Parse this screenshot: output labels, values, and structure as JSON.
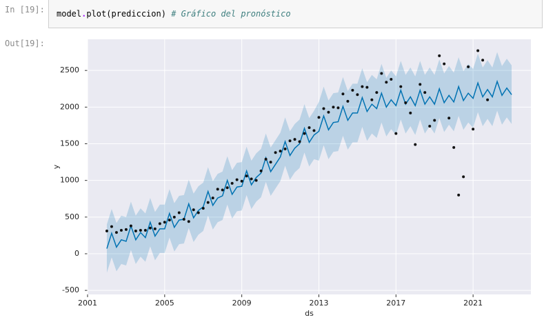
{
  "notebook": {
    "in_prompt": "In [19]:",
    "out_prompt": "Out[19]:",
    "code": {
      "object": "model",
      "dot": ".",
      "call": "plot(prediccion)",
      "comment": "# Gráfico del pronóstico"
    }
  },
  "chart_data": {
    "type": "line",
    "xlabel": "ds",
    "ylabel": "y",
    "xlim": [
      2001,
      2024
    ],
    "ylim": [
      -555,
      2925
    ],
    "xticks": [
      2001,
      2005,
      2009,
      2013,
      2017,
      2021
    ],
    "yticks": [
      -500,
      0,
      500,
      1000,
      1500,
      2000,
      2500
    ],
    "grid": true,
    "color": "#0072b2",
    "band_color": "#0072b2",
    "point_color": "#111111",
    "x": [
      2002,
      2002.25,
      2002.5,
      2002.75,
      2003,
      2003.25,
      2003.5,
      2003.75,
      2004,
      2004.25,
      2004.5,
      2004.75,
      2005,
      2005.25,
      2005.5,
      2005.75,
      2006,
      2006.25,
      2006.5,
      2006.75,
      2007,
      2007.25,
      2007.5,
      2007.75,
      2008,
      2008.25,
      2008.5,
      2008.75,
      2009,
      2009.25,
      2009.5,
      2009.75,
      2010,
      2010.25,
      2010.5,
      2010.75,
      2011,
      2011.25,
      2011.5,
      2011.75,
      2012,
      2012.25,
      2012.5,
      2012.75,
      2013,
      2013.25,
      2013.5,
      2013.75,
      2014,
      2014.25,
      2014.5,
      2014.75,
      2015,
      2015.25,
      2015.5,
      2015.75,
      2016,
      2016.25,
      2016.5,
      2016.75,
      2017,
      2017.25,
      2017.5,
      2017.75,
      2018,
      2018.25,
      2018.5,
      2018.75,
      2019,
      2019.25,
      2019.5,
      2019.75,
      2020,
      2020.25,
      2020.5,
      2020.75,
      2021,
      2021.25,
      2021.5,
      2021.75,
      2022,
      2022.25,
      2022.5,
      2022.75,
      2023
    ],
    "values": [
      70,
      280,
      90,
      190,
      170,
      380,
      190,
      290,
      220,
      430,
      240,
      340,
      340,
      550,
      360,
      460,
      470,
      680,
      490,
      590,
      640,
      850,
      660,
      760,
      790,
      1000,
      810,
      910,
      920,
      1130,
      940,
      1040,
      1100,
      1310,
      1120,
      1220,
      1320,
      1530,
      1340,
      1440,
      1500,
      1710,
      1520,
      1620,
      1670,
      1880,
      1690,
      1790,
      1800,
      2010,
      1820,
      1920,
      1920,
      2130,
      1940,
      2040,
      1980,
      2190,
      2000,
      2100,
      2020,
      2230,
      2040,
      2140,
      2020,
      2230,
      2040,
      2140,
      2040,
      2250,
      2060,
      2160,
      2070,
      2280,
      2090,
      2190,
      2120,
      2330,
      2140,
      2240,
      2140,
      2350,
      2160,
      2260,
      2170
    ],
    "lower": [
      -260,
      -50,
      -240,
      -140,
      -160,
      50,
      -140,
      -40,
      -110,
      100,
      -90,
      10,
      10,
      220,
      30,
      130,
      140,
      350,
      160,
      260,
      310,
      520,
      330,
      430,
      460,
      670,
      480,
      580,
      590,
      800,
      610,
      710,
      770,
      980,
      790,
      890,
      990,
      1200,
      1010,
      1110,
      1170,
      1380,
      1190,
      1290,
      1270,
      1480,
      1290,
      1390,
      1400,
      1610,
      1420,
      1520,
      1520,
      1730,
      1540,
      1640,
      1580,
      1790,
      1600,
      1700,
      1620,
      1830,
      1640,
      1740,
      1620,
      1830,
      1640,
      1740,
      1640,
      1850,
      1660,
      1760,
      1670,
      1880,
      1690,
      1790,
      1720,
      1930,
      1740,
      1840,
      1740,
      1950,
      1760,
      1860,
      1770
    ],
    "upper": [
      400,
      610,
      420,
      520,
      500,
      710,
      520,
      620,
      550,
      760,
      570,
      670,
      670,
      880,
      690,
      790,
      800,
      1010,
      820,
      920,
      970,
      1180,
      990,
      1090,
      1120,
      1330,
      1140,
      1240,
      1250,
      1460,
      1270,
      1370,
      1430,
      1640,
      1450,
      1550,
      1650,
      1860,
      1670,
      1770,
      1830,
      2040,
      1850,
      1950,
      2070,
      2280,
      2090,
      2190,
      2200,
      2410,
      2220,
      2320,
      2320,
      2530,
      2340,
      2440,
      2380,
      2590,
      2400,
      2500,
      2420,
      2630,
      2440,
      2540,
      2420,
      2630,
      2440,
      2540,
      2440,
      2650,
      2460,
      2560,
      2470,
      2680,
      2490,
      2590,
      2520,
      2730,
      2540,
      2640,
      2540,
      2750,
      2560,
      2660,
      2570
    ],
    "points": {
      "x": [
        2002,
        2002.25,
        2002.5,
        2002.75,
        2003,
        2003.25,
        2003.5,
        2003.75,
        2004,
        2004.25,
        2004.5,
        2004.75,
        2005,
        2005.25,
        2005.5,
        2005.75,
        2006,
        2006.25,
        2006.5,
        2006.75,
        2007,
        2007.25,
        2007.5,
        2007.75,
        2008,
        2008.25,
        2008.5,
        2008.75,
        2009,
        2009.25,
        2009.5,
        2009.75,
        2010,
        2010.25,
        2010.5,
        2010.75,
        2011,
        2011.25,
        2011.5,
        2011.75,
        2012,
        2012.25,
        2012.5,
        2012.75,
        2013,
        2013.25,
        2013.5,
        2013.75,
        2014,
        2014.25,
        2014.5,
        2014.75,
        2015,
        2015.25,
        2015.5,
        2015.75,
        2016,
        2016.25,
        2016.5,
        2016.75,
        2017,
        2017.25,
        2017.5,
        2017.75,
        2018,
        2018.25,
        2018.5,
        2018.75,
        2019,
        2019.25,
        2019.5,
        2019.75,
        2020,
        2020.25,
        2020.5,
        2020.75,
        2021,
        2021.25,
        2021.5,
        2021.75
      ],
      "values": [
        310,
        370,
        290,
        320,
        330,
        380,
        310,
        320,
        320,
        350,
        340,
        410,
        430,
        460,
        500,
        560,
        470,
        440,
        600,
        560,
        620,
        700,
        760,
        880,
        870,
        900,
        960,
        1010,
        990,
        1060,
        1020,
        1000,
        1130,
        1290,
        1250,
        1380,
        1400,
        1430,
        1540,
        1560,
        1530,
        1640,
        1720,
        1680,
        1860,
        1980,
        1930,
        2000,
        1990,
        2180,
        2080,
        2230,
        2170,
        2280,
        2270,
        2100,
        2200,
        2460,
        2340,
        2380,
        1640,
        2280,
        2060,
        1920,
        1490,
        2310,
        2200,
        1740,
        1820,
        2700,
        2590,
        1850,
        1450,
        800,
        1050,
        2550,
        1700,
        2770,
        2640,
        2100
      ]
    }
  }
}
